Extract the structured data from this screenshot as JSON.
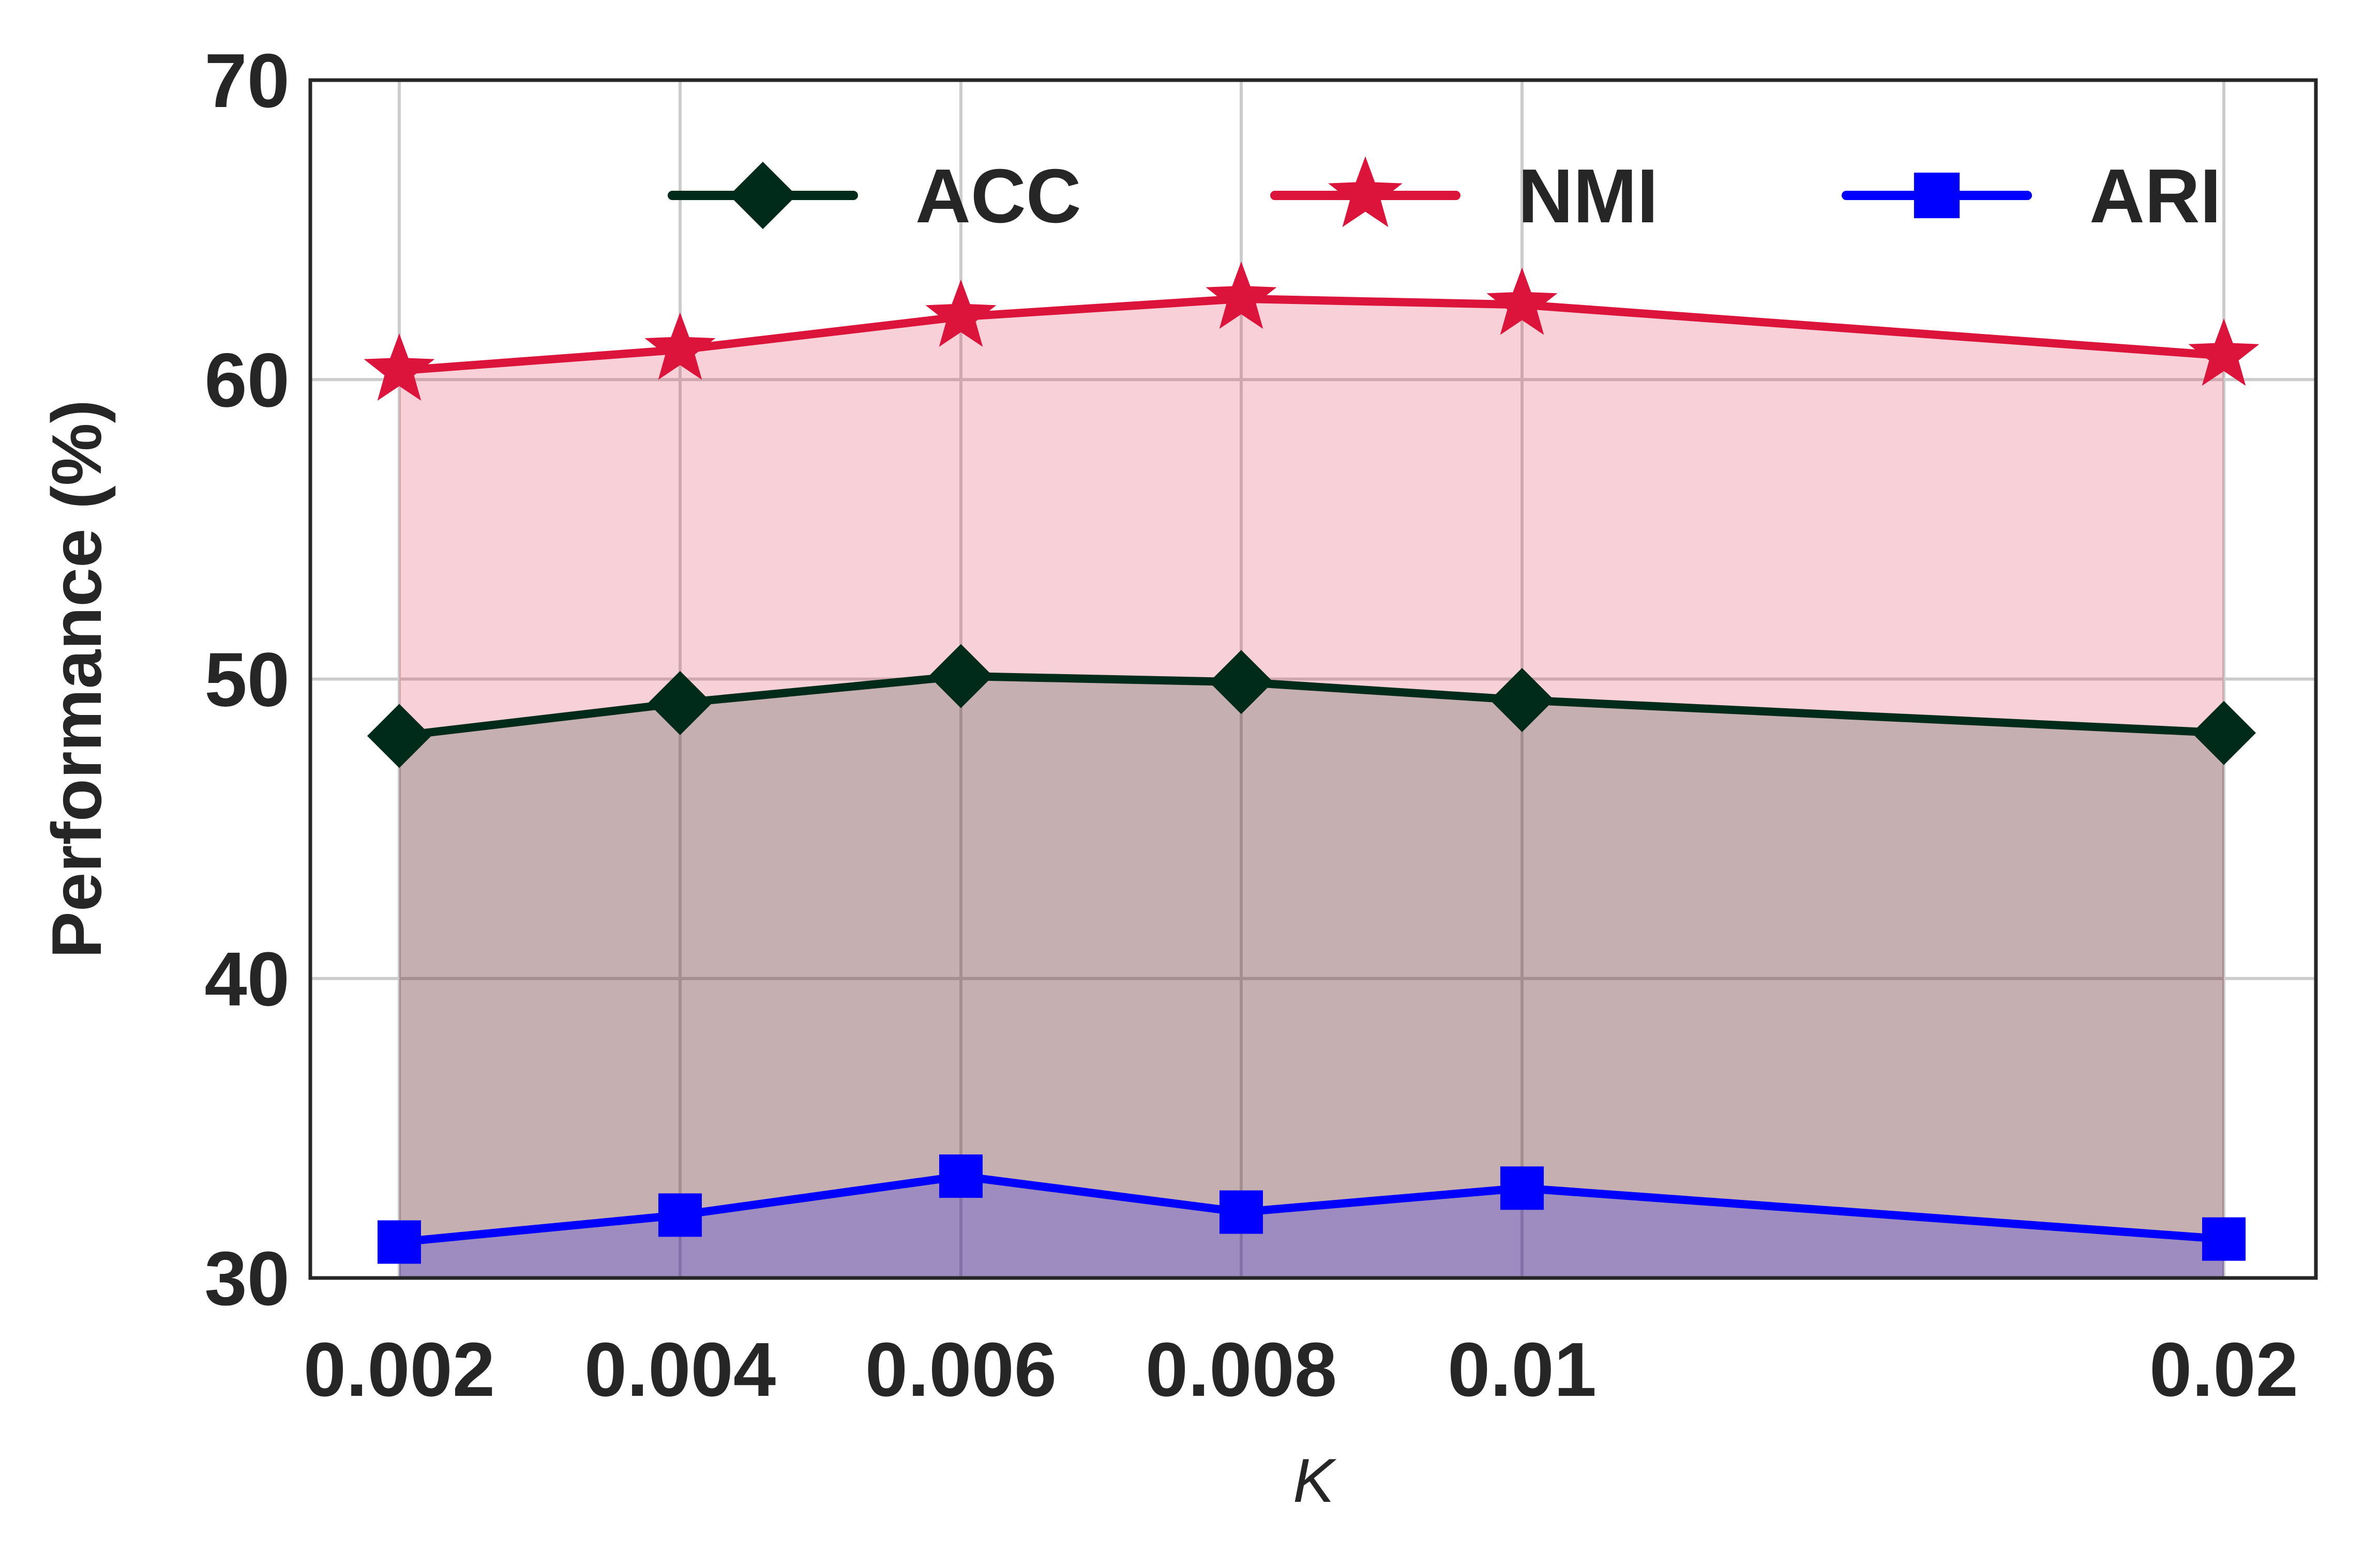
{
  "chart_data": {
    "type": "line",
    "fill": "area",
    "x_labels": [
      "0.002",
      "0.004",
      "0.006",
      "0.008",
      "0.01",
      "0.02"
    ],
    "x": [
      0.002,
      0.004,
      0.006,
      0.008,
      0.01,
      0.02
    ],
    "xlabel": "K",
    "ylabel": "Performance (%)",
    "ylim": [
      30,
      70
    ],
    "yticks": [
      30,
      40,
      50,
      60,
      70
    ],
    "grid": true,
    "legend": {
      "position": "top",
      "columns": 3
    },
    "series": [
      {
        "name": "ACC",
        "marker": "diamond",
        "color": "#002b1a",
        "values": [
          48.1,
          49.2,
          50.1,
          49.9,
          49.3,
          48.2
        ]
      },
      {
        "name": "NMI",
        "marker": "star",
        "color": "#dc143c",
        "values": [
          60.3,
          61.0,
          62.1,
          62.7,
          62.5,
          60.8
        ]
      },
      {
        "name": "ARI",
        "marker": "square",
        "color": "#0000ff",
        "values": [
          31.2,
          32.1,
          33.4,
          32.2,
          33.0,
          31.3
        ]
      }
    ]
  }
}
